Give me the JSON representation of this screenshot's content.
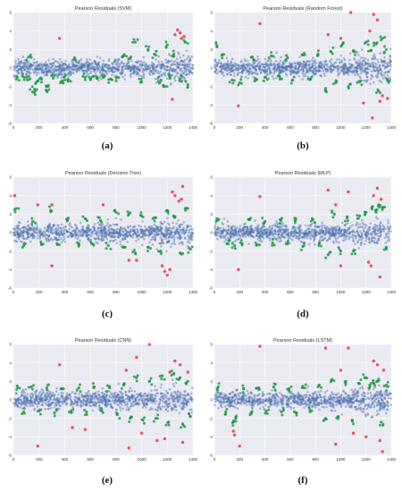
{
  "figure": {
    "panel_labels": [
      "(a)",
      "(b)",
      "(c)",
      "(d)",
      "(e)",
      "(f)"
    ]
  },
  "colors": {
    "background": "#eaeaf2",
    "grid": "#ffffff",
    "blue": "#4c72b0",
    "green": "#1a9641",
    "red": "#e8393b"
  },
  "chart_data": [
    {
      "type": "scatter",
      "title": "Pearson Residuals (SVM)",
      "xlabel": "",
      "ylabel": "",
      "xlim": [
        0,
        1400
      ],
      "ylim": [
        -6,
        6
      ],
      "xticks": [
        0,
        200,
        400,
        600,
        800,
        1000,
        1200,
        1400
      ],
      "yticks": [
        6,
        4,
        2,
        0,
        -2,
        -4,
        -6
      ],
      "grid": true,
      "outliers": {
        "green": [
          [
            30,
            -1.0
          ],
          [
            70,
            -0.9
          ],
          [
            110,
            -1.3
          ],
          [
            150,
            -2.6
          ],
          [
            165,
            -2.3
          ],
          [
            190,
            -1.4
          ],
          [
            220,
            -1.2
          ],
          [
            255,
            -2.4
          ],
          [
            270,
            -2.0
          ],
          [
            310,
            -1.1
          ],
          [
            380,
            -1.5
          ],
          [
            395,
            -1.0
          ],
          [
            430,
            -1.3
          ],
          [
            560,
            -1.0
          ],
          [
            600,
            -1.2
          ],
          [
            650,
            -1.1
          ],
          [
            700,
            -1.0
          ],
          [
            760,
            -1.2
          ],
          [
            810,
            -1.0
          ],
          [
            900,
            1.0
          ],
          [
            950,
            2.8
          ],
          [
            1000,
            -1.5
          ],
          [
            1050,
            2.0
          ],
          [
            1100,
            1.5
          ],
          [
            1150,
            -1.3
          ],
          [
            1200,
            2.5
          ],
          [
            1250,
            1.5
          ],
          [
            1300,
            -1.2
          ],
          [
            1340,
            2.8
          ],
          [
            1360,
            -1.8
          ],
          [
            120,
            1.2
          ],
          [
            480,
            1.0
          ],
          [
            850,
            1.2
          ],
          [
            1180,
            -2.0
          ],
          [
            1220,
            -1.0
          ]
        ],
        "red": [
          [
            360,
            3.2
          ],
          [
            1260,
            3.6
          ],
          [
            1280,
            4.1
          ],
          [
            1300,
            3.8
          ],
          [
            1310,
            3.2
          ],
          [
            1330,
            3.4
          ],
          [
            1240,
            -3.4
          ]
        ]
      }
    },
    {
      "type": "scatter",
      "title": "Pearson Residuals (Random Forest)",
      "xlabel": "",
      "ylabel": "",
      "xlim": [
        0,
        1400
      ],
      "ylim": [
        -6,
        6
      ],
      "xticks": [
        0,
        200,
        400,
        600,
        800,
        1000,
        1200,
        1400
      ],
      "yticks": [
        6,
        4,
        2,
        0,
        -2,
        -4,
        -6
      ],
      "grid": true,
      "outliers": {
        "green": [
          [
            20,
            2.4
          ],
          [
            60,
            1.4
          ],
          [
            140,
            -1.3
          ],
          [
            200,
            -1.6
          ],
          [
            300,
            1.2
          ],
          [
            320,
            -1.4
          ],
          [
            400,
            -1.0
          ],
          [
            450,
            1.3
          ],
          [
            520,
            -1.2
          ],
          [
            580,
            1.1
          ],
          [
            620,
            -1.3
          ],
          [
            700,
            1.4
          ],
          [
            760,
            -1.2
          ],
          [
            820,
            1.5
          ],
          [
            880,
            -2.2
          ],
          [
            920,
            1.8
          ],
          [
            960,
            -1.6
          ],
          [
            1010,
            2.5
          ],
          [
            1060,
            -2.0
          ],
          [
            1100,
            1.8
          ],
          [
            1150,
            -1.5
          ],
          [
            1200,
            2.8
          ],
          [
            1240,
            1.9
          ],
          [
            1280,
            2.6
          ],
          [
            1300,
            -2.5
          ],
          [
            1330,
            3.2
          ],
          [
            1360,
            2.0
          ],
          [
            1380,
            -1.4
          ]
        ],
        "red": [
          [
            190,
            -4.1
          ],
          [
            360,
            4.8
          ],
          [
            900,
            3.6
          ],
          [
            1000,
            3.2
          ],
          [
            1080,
            6.0
          ],
          [
            1180,
            -3.8
          ],
          [
            1230,
            4.0
          ],
          [
            1260,
            5.8
          ],
          [
            1290,
            5.2
          ],
          [
            1310,
            -3.6
          ],
          [
            1250,
            -5.4
          ],
          [
            1330,
            -3.0
          ],
          [
            1370,
            -3.3
          ]
        ]
      }
    },
    {
      "type": "scatter",
      "title": "Pearson Residuals (Decision Tree)",
      "xlabel": "",
      "ylabel": "",
      "xlim": [
        0,
        1400
      ],
      "ylim": [
        -6,
        6
      ],
      "xticks": [
        0,
        200,
        400,
        600,
        800,
        1000,
        1200,
        1400
      ],
      "yticks": [
        6,
        4,
        2,
        0,
        -2,
        -4,
        -6
      ],
      "grid": true,
      "outliers": {
        "green": [
          [
            20,
            2.6
          ],
          [
            80,
            -1.4
          ],
          [
            150,
            1.2
          ],
          [
            220,
            -1.3
          ],
          [
            290,
            2.4
          ],
          [
            340,
            -1.2
          ],
          [
            420,
            1.3
          ],
          [
            500,
            -1.1
          ],
          [
            560,
            1.5
          ],
          [
            610,
            -1.2
          ],
          [
            680,
            1.3
          ],
          [
            740,
            -1.4
          ],
          [
            800,
            2.2
          ],
          [
            860,
            -1.6
          ],
          [
            900,
            2.0
          ],
          [
            950,
            -2.2
          ],
          [
            1000,
            1.8
          ],
          [
            1050,
            -1.6
          ],
          [
            1100,
            1.6
          ],
          [
            1150,
            -2.0
          ],
          [
            1200,
            2.4
          ],
          [
            1250,
            1.8
          ],
          [
            1300,
            -2.2
          ],
          [
            1340,
            2.6
          ],
          [
            1380,
            -1.8
          ]
        ],
        "red": [
          [
            10,
            4.0
          ],
          [
            190,
            3.0
          ],
          [
            300,
            -3.6
          ],
          [
            300,
            3.0
          ],
          [
            700,
            3.0
          ],
          [
            900,
            -3.0
          ],
          [
            960,
            -3.0
          ],
          [
            1160,
            -3.6
          ],
          [
            1180,
            -4.2
          ],
          [
            1200,
            -4.6
          ],
          [
            1220,
            -4.0
          ],
          [
            1260,
            4.0
          ],
          [
            1290,
            3.4
          ],
          [
            1310,
            3.6
          ],
          [
            1320,
            5.0
          ],
          [
            1240,
            4.4
          ]
        ]
      }
    },
    {
      "type": "scatter",
      "title": "Pearson Residuals (MLP)",
      "xlabel": "",
      "ylabel": "",
      "xlim": [
        0,
        1400
      ],
      "ylim": [
        -6,
        6
      ],
      "xticks": [
        0,
        200,
        400,
        600,
        800,
        1000,
        1200,
        1400
      ],
      "yticks": [
        6,
        4,
        2,
        0,
        -2,
        -4,
        -6
      ],
      "grid": true,
      "outliers": {
        "green": [
          [
            20,
            1.5
          ],
          [
            100,
            -1.2
          ],
          [
            160,
            -1.4
          ],
          [
            220,
            -1.2
          ],
          [
            280,
            1.4
          ],
          [
            340,
            -1.3
          ],
          [
            400,
            1.2
          ],
          [
            460,
            -1.1
          ],
          [
            520,
            1.4
          ],
          [
            580,
            -1.2
          ],
          [
            640,
            1.3
          ],
          [
            700,
            -1.5
          ],
          [
            780,
            1.4
          ],
          [
            830,
            -1.2
          ],
          [
            900,
            -2.4
          ],
          [
            950,
            2.0
          ],
          [
            1000,
            -2.0
          ],
          [
            1050,
            1.6
          ],
          [
            1100,
            -2.0
          ],
          [
            1150,
            1.8
          ],
          [
            1200,
            2.2
          ],
          [
            1250,
            2.8
          ],
          [
            1280,
            2.2
          ],
          [
            1300,
            3.0
          ],
          [
            1330,
            2.5
          ],
          [
            1360,
            -1.6
          ]
        ],
        "red": [
          [
            190,
            -4.0
          ],
          [
            360,
            3.9
          ],
          [
            900,
            4.6
          ],
          [
            960,
            3.0
          ],
          [
            1000,
            -3.6
          ],
          [
            1060,
            4.4
          ],
          [
            1220,
            -3.2
          ],
          [
            1240,
            -3.6
          ],
          [
            1260,
            4.0
          ],
          [
            1290,
            4.8
          ],
          [
            1310,
            -4.8
          ],
          [
            1320,
            3.6
          ]
        ]
      }
    },
    {
      "type": "scatter",
      "title": "Pearson Residuals (CNN)",
      "xlabel": "",
      "ylabel": "",
      "xlim": [
        0,
        1400
      ],
      "ylim": [
        -6,
        6
      ],
      "xticks": [
        0,
        200,
        400,
        600,
        800,
        1000,
        1200,
        1400
      ],
      "yticks": [
        6,
        4,
        2,
        0,
        -2,
        -4,
        -6
      ],
      "grid": true,
      "outliers": {
        "green": [
          [
            30,
            1.5
          ],
          [
            80,
            -1.3
          ],
          [
            140,
            1.4
          ],
          [
            200,
            -1.2
          ],
          [
            260,
            1.3
          ],
          [
            320,
            -1.4
          ],
          [
            390,
            1.2
          ],
          [
            450,
            -1.2
          ],
          [
            510,
            1.3
          ],
          [
            570,
            -1.3
          ],
          [
            630,
            1.4
          ],
          [
            690,
            -1.2
          ],
          [
            750,
            1.3
          ],
          [
            810,
            -1.6
          ],
          [
            860,
            1.6
          ],
          [
            910,
            -2.0
          ],
          [
            960,
            2.4
          ],
          [
            1010,
            -2.2
          ],
          [
            1060,
            2.0
          ],
          [
            1110,
            -2.0
          ],
          [
            1160,
            2.6
          ],
          [
            1210,
            -2.4
          ],
          [
            1250,
            2.8
          ],
          [
            1290,
            2.2
          ],
          [
            1320,
            -2.6
          ],
          [
            1360,
            2.0
          ],
          [
            1380,
            -1.8
          ]
        ],
        "red": [
          [
            190,
            -5.0
          ],
          [
            360,
            3.8
          ],
          [
            460,
            -3.0
          ],
          [
            560,
            -3.2
          ],
          [
            880,
            3.2
          ],
          [
            900,
            -5.2
          ],
          [
            960,
            4.6
          ],
          [
            1000,
            -3.6
          ],
          [
            1060,
            6.0
          ],
          [
            1120,
            -4.4
          ],
          [
            1180,
            -4.2
          ],
          [
            1220,
            3.0
          ],
          [
            1260,
            4.2
          ],
          [
            1300,
            3.8
          ],
          [
            1320,
            -4.6
          ],
          [
            1360,
            3.0
          ]
        ]
      }
    },
    {
      "type": "scatter",
      "title": "Pearson Residuals (LSTM)",
      "xlabel": "",
      "ylabel": "",
      "xlim": [
        0,
        1400
      ],
      "ylim": [
        -6,
        6
      ],
      "xticks": [
        0,
        200,
        400,
        600,
        800,
        1000,
        1200,
        1400
      ],
      "yticks": [
        6,
        4,
        2,
        0,
        -2,
        -4,
        -6
      ],
      "grid": true,
      "outliers": {
        "green": [
          [
            30,
            1.4
          ],
          [
            90,
            -1.3
          ],
          [
            150,
            -2.4
          ],
          [
            170,
            -2.0
          ],
          [
            230,
            1.2
          ],
          [
            290,
            -1.4
          ],
          [
            350,
            1.3
          ],
          [
            410,
            -1.2
          ],
          [
            470,
            1.4
          ],
          [
            530,
            -1.3
          ],
          [
            590,
            1.2
          ],
          [
            650,
            -1.4
          ],
          [
            710,
            1.3
          ],
          [
            770,
            -1.2
          ],
          [
            830,
            1.6
          ],
          [
            880,
            -2.0
          ],
          [
            930,
            2.2
          ],
          [
            980,
            -1.8
          ],
          [
            1040,
            2.0
          ],
          [
            1090,
            -2.2
          ],
          [
            1140,
            1.8
          ],
          [
            1190,
            2.4
          ],
          [
            1230,
            1.6
          ],
          [
            1260,
            1.8
          ],
          [
            1290,
            2.0
          ],
          [
            1320,
            -2.4
          ],
          [
            1360,
            1.6
          ]
        ],
        "red": [
          [
            150,
            -3.4
          ],
          [
            160,
            -3.8
          ],
          [
            200,
            -5.0
          ],
          [
            360,
            5.8
          ],
          [
            880,
            5.6
          ],
          [
            960,
            -4.8
          ],
          [
            1000,
            3.2
          ],
          [
            1060,
            5.6
          ],
          [
            1100,
            -3.6
          ],
          [
            1200,
            -4.0
          ],
          [
            1260,
            4.2
          ],
          [
            1290,
            3.8
          ],
          [
            1310,
            -4.4
          ],
          [
            1330,
            -5.6
          ],
          [
            1340,
            3.2
          ]
        ]
      }
    }
  ]
}
